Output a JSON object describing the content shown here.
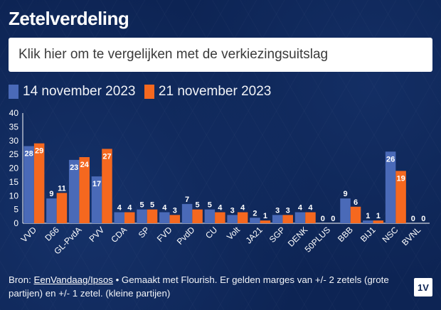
{
  "title": "Zetelverdeling",
  "compare_button": "Klik hier om te vergelijken met de verkiezingsuitslag",
  "legend": [
    {
      "label": "14 november 2023",
      "color": "#4a6ab8"
    },
    {
      "label": "21 november 2023",
      "color": "#f5681f"
    }
  ],
  "chart_data": {
    "type": "bar",
    "categories": [
      "VVD",
      "D66",
      "GL-PvdA",
      "PVV",
      "CDA",
      "SP",
      "FVD",
      "PvdD",
      "CU",
      "Volt",
      "JA21",
      "SGP",
      "DENK",
      "50PLUS",
      "BBB",
      "BIJ1",
      "NSC",
      "BVNL"
    ],
    "series": [
      {
        "name": "14 november 2023",
        "color": "#4a6ab8",
        "values": [
          28,
          9,
          23,
          17,
          4,
          5,
          4,
          7,
          5,
          3,
          2,
          3,
          4,
          0,
          9,
          1,
          26,
          0
        ]
      },
      {
        "name": "21 november 2023",
        "color": "#f5681f",
        "values": [
          29,
          11,
          24,
          27,
          4,
          5,
          3,
          5,
          4,
          4,
          1,
          3,
          4,
          0,
          6,
          1,
          19,
          0
        ]
      }
    ],
    "yticks": [
      0,
      5,
      10,
      15,
      20,
      25,
      30,
      35,
      40
    ],
    "ylim": [
      0,
      40
    ],
    "xlabel": "",
    "ylabel": "",
    "legend_position": "top-left",
    "grid": false
  },
  "footer": {
    "prefix": "Bron: ",
    "link": "EenVandaag/Ipsos",
    "text": " • Gemaakt met Flourish. Er gelden marges van +/- 2 zetels (grote partijen) en +/- 1 zetel. (kleine partijen)",
    "logo": "1V"
  }
}
